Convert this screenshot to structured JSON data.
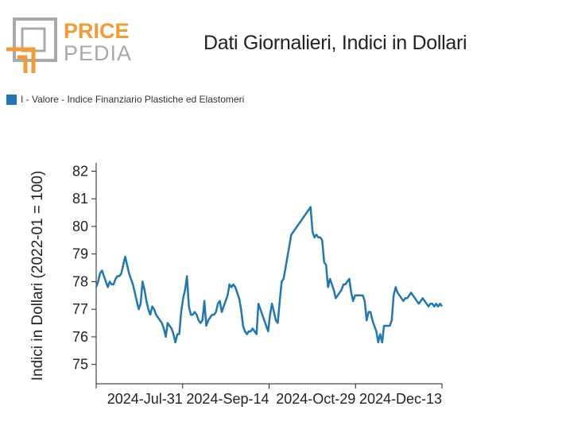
{
  "logo": {
    "text_top": "PRICE",
    "text_bottom": "PEDIA",
    "color_orange": "#f39c34",
    "color_gray": "#a9a9a9"
  },
  "title": "Dati Giornalieri, Indici in Dollari",
  "legend": {
    "label": "I - Valore - Indice Finanziario Plastiche ed Elastomeri",
    "color": "#1f77b4"
  },
  "chart_data": {
    "type": "line",
    "title": "Dati Giornalieri, Indici in Dollari",
    "xlabel": "",
    "ylabel": "Indici in Dollari (2022-01 = 100)",
    "ylim": [
      74.3,
      82.3
    ],
    "yticks": [
      75,
      76,
      77,
      78,
      79,
      80,
      81,
      82
    ],
    "x_tick_labels": [
      "2024-Jul-31",
      "2024-Sep-14",
      "2024-Oct-29",
      "2024-Dec-13"
    ],
    "grid": false,
    "series": [
      {
        "name": "I - Valore - Indice Finanziario Plastiche ed Elastomeri",
        "color": "#1f77b4",
        "x": [
          0,
          1,
          2,
          3,
          4,
          5,
          6,
          7,
          8,
          9,
          10,
          11,
          12,
          13,
          14,
          15,
          16,
          17,
          18,
          19,
          20,
          21,
          22,
          23,
          24,
          25,
          26,
          27,
          28,
          29,
          30,
          31,
          32,
          33,
          34,
          35,
          36,
          37,
          38,
          39,
          40,
          41,
          42,
          43,
          44,
          45,
          46,
          47,
          48,
          49,
          50,
          51,
          52,
          53,
          54,
          55,
          56,
          57,
          58,
          59,
          60,
          61,
          62,
          63,
          64,
          65,
          66,
          67,
          68,
          69,
          70,
          71,
          72,
          73,
          74,
          75,
          76,
          77,
          78,
          79,
          80,
          81,
          82,
          83,
          84,
          85,
          86,
          87,
          88,
          89,
          90,
          91,
          92,
          93,
          94,
          95,
          96,
          97,
          98,
          99,
          100,
          101,
          102,
          103,
          104,
          105,
          106,
          107,
          108,
          109,
          110,
          111,
          112,
          113,
          114,
          115,
          116,
          117,
          118,
          119,
          120,
          121,
          122,
          123,
          124,
          125,
          126,
          127,
          128,
          129,
          130,
          131,
          132,
          133,
          134,
          135,
          136,
          137,
          138,
          139,
          140,
          141,
          142,
          143,
          144,
          145,
          146,
          147,
          148,
          149,
          150,
          151,
          152,
          153,
          154,
          155,
          156,
          157,
          158,
          159,
          160,
          161,
          162,
          163,
          164,
          165,
          166,
          167,
          168,
          169,
          170,
          171,
          172,
          173,
          174,
          175,
          176,
          177,
          178,
          179
        ],
        "values": [
          77.8,
          78.0,
          78.3,
          78.4,
          78.2,
          78.0,
          77.8,
          78.0,
          77.9,
          77.9,
          78.1,
          78.2,
          78.2,
          78.3,
          78.6,
          78.9,
          78.6,
          78.3,
          78.1,
          77.9,
          77.6,
          77.3,
          77.0,
          77.2,
          78.0,
          77.7,
          77.3,
          77.0,
          76.8,
          77.1,
          77.0,
          76.8,
          76.7,
          76.6,
          76.5,
          76.3,
          76.0,
          76.5,
          76.4,
          76.3,
          76.1,
          75.8,
          76.1,
          76.1,
          76.9,
          77.4,
          77.7,
          78.2,
          77.1,
          76.8,
          76.8,
          76.9,
          76.8,
          76.6,
          76.5,
          76.6,
          77.3,
          76.4,
          76.6,
          76.7,
          76.8,
          76.8,
          76.9,
          77.2,
          77.3,
          76.9,
          77.1,
          77.3,
          77.5,
          77.9,
          77.8,
          77.9,
          77.8,
          77.6,
          77.4,
          77.0,
          76.4,
          76.2,
          76.1,
          76.2,
          76.2,
          76.3,
          76.2,
          76.1,
          77.2,
          77.0,
          76.8,
          76.6,
          76.4,
          76.2,
          76.8,
          77.2,
          76.9,
          76.6,
          76.5,
          77.3,
          78.0,
          78.1,
          78.5,
          78.9,
          79.3,
          79.7,
          79.8,
          79.9,
          80.0,
          80.1,
          80.2,
          80.3,
          80.4,
          80.5,
          80.6,
          80.7,
          79.8,
          79.6,
          79.7,
          79.6,
          79.6,
          79.5,
          78.7,
          78.6,
          77.8,
          78.1,
          77.9,
          77.7,
          77.4,
          77.5,
          77.6,
          77.7,
          77.9,
          77.9,
          78.0,
          78.1,
          77.6,
          77.3,
          77.5,
          77.5,
          77.5,
          77.5,
          77.5,
          77.3,
          76.6,
          76.9,
          76.9,
          76.6,
          76.4,
          76.2,
          75.8,
          76.1,
          75.8,
          76.4,
          76.4,
          76.4,
          76.4,
          76.6,
          77.5,
          77.8,
          77.6,
          77.5,
          77.4,
          77.3,
          77.4,
          77.4,
          77.5,
          77.6,
          77.5,
          77.4,
          77.3,
          77.2,
          77.3,
          77.4,
          77.3,
          77.2,
          77.1,
          77.2,
          77.2,
          77.1,
          77.2,
          77.1,
          77.2,
          77.1
        ]
      }
    ]
  }
}
